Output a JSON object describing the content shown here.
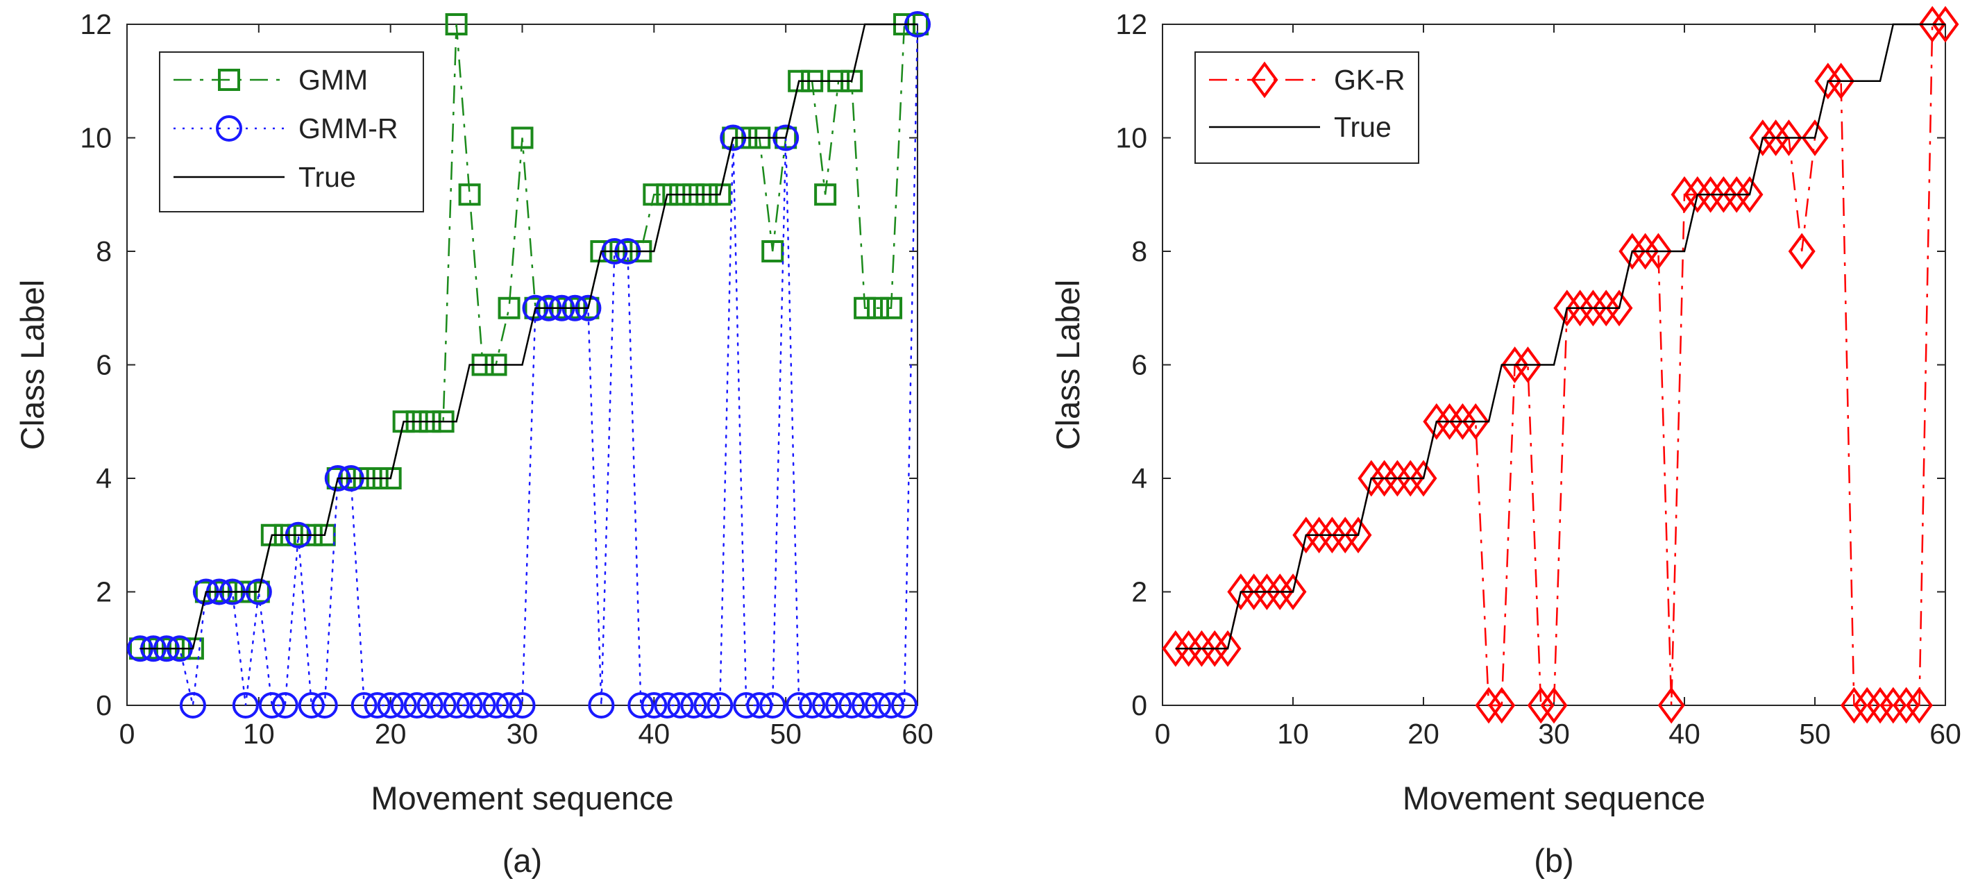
{
  "chart_data": [
    {
      "panel_label": "(a)",
      "type": "line",
      "xlabel": "Movement sequence",
      "ylabel": "Class Label",
      "xlim": [
        0,
        60
      ],
      "ylim": [
        0,
        12
      ],
      "xticks": [
        0,
        10,
        20,
        30,
        40,
        50,
        60
      ],
      "yticks": [
        0,
        2,
        4,
        6,
        8,
        10,
        12
      ],
      "legend_position": "top-left",
      "series": [
        {
          "name": "GMM",
          "color": "#1b8a1b",
          "line_style": "dash-dot",
          "marker": "square",
          "x": [
            1,
            2,
            3,
            4,
            5,
            6,
            7,
            8,
            9,
            10,
            11,
            12,
            13,
            14,
            15,
            16,
            17,
            18,
            19,
            20,
            21,
            22,
            23,
            24,
            25,
            26,
            27,
            28,
            29,
            30,
            31,
            32,
            33,
            34,
            35,
            36,
            37,
            38,
            39,
            40,
            41,
            42,
            43,
            44,
            45,
            46,
            47,
            48,
            49,
            50,
            51,
            52,
            53,
            54,
            55,
            56,
            57,
            58,
            59,
            60
          ],
          "y": [
            1,
            1,
            1,
            1,
            1,
            2,
            2,
            2,
            2,
            2,
            3,
            3,
            3,
            3,
            3,
            4,
            4,
            4,
            4,
            4,
            5,
            5,
            5,
            5,
            12,
            9,
            6,
            6,
            7,
            10,
            7,
            7,
            7,
            7,
            7,
            8,
            8,
            8,
            8,
            9,
            9,
            9,
            9,
            9,
            9,
            10,
            10,
            10,
            8,
            10,
            11,
            11,
            9,
            11,
            11,
            7,
            7,
            7,
            12,
            12
          ]
        },
        {
          "name": "GMM-R",
          "color": "#1a1aff",
          "line_style": "dotted",
          "marker": "circle",
          "x": [
            1,
            2,
            3,
            4,
            5,
            6,
            7,
            8,
            9,
            10,
            11,
            12,
            13,
            14,
            15,
            16,
            17,
            18,
            19,
            20,
            21,
            22,
            23,
            24,
            25,
            26,
            27,
            28,
            29,
            30,
            31,
            32,
            33,
            34,
            35,
            36,
            37,
            38,
            39,
            40,
            41,
            42,
            43,
            44,
            45,
            46,
            47,
            48,
            49,
            50,
            51,
            52,
            53,
            54,
            55,
            56,
            57,
            58,
            59,
            60
          ],
          "y": [
            1,
            1,
            1,
            1,
            0,
            2,
            2,
            2,
            0,
            2,
            0,
            0,
            3,
            0,
            0,
            4,
            4,
            0,
            0,
            0,
            0,
            0,
            0,
            0,
            0,
            0,
            0,
            0,
            0,
            0,
            7,
            7,
            7,
            7,
            7,
            0,
            8,
            8,
            0,
            0,
            0,
            0,
            0,
            0,
            0,
            10,
            0,
            0,
            0,
            10,
            0,
            0,
            0,
            0,
            0,
            0,
            0,
            0,
            0,
            12
          ]
        },
        {
          "name": "True",
          "color": "#000000",
          "line_style": "solid",
          "marker": "none",
          "x": [
            1,
            5,
            6,
            10,
            11,
            15,
            16,
            20,
            21,
            25,
            26,
            30,
            31,
            35,
            36,
            40,
            41,
            45,
            46,
            50,
            51,
            55,
            56,
            60
          ],
          "y": [
            1,
            1,
            2,
            2,
            3,
            3,
            4,
            4,
            5,
            5,
            6,
            6,
            7,
            7,
            8,
            8,
            9,
            9,
            10,
            10,
            11,
            11,
            12,
            12
          ]
        }
      ]
    },
    {
      "panel_label": "(b)",
      "type": "line",
      "xlabel": "Movement sequence",
      "ylabel": "Class Label",
      "xlim": [
        0,
        60
      ],
      "ylim": [
        0,
        12
      ],
      "xticks": [
        0,
        10,
        20,
        30,
        40,
        50,
        60
      ],
      "yticks": [
        0,
        2,
        4,
        6,
        8,
        10,
        12
      ],
      "legend_position": "top-left",
      "series": [
        {
          "name": "GK-R",
          "color": "#ff0000",
          "line_style": "dash-dot",
          "marker": "diamond",
          "x": [
            1,
            2,
            3,
            4,
            5,
            6,
            7,
            8,
            9,
            10,
            11,
            12,
            13,
            14,
            15,
            16,
            17,
            18,
            19,
            20,
            21,
            22,
            23,
            24,
            25,
            26,
            27,
            28,
            29,
            30,
            31,
            32,
            33,
            34,
            35,
            36,
            37,
            38,
            39,
            40,
            41,
            42,
            43,
            44,
            45,
            46,
            47,
            48,
            49,
            50,
            51,
            52,
            53,
            54,
            55,
            56,
            57,
            58,
            59,
            60
          ],
          "y": [
            1,
            1,
            1,
            1,
            1,
            2,
            2,
            2,
            2,
            2,
            3,
            3,
            3,
            3,
            3,
            4,
            4,
            4,
            4,
            4,
            5,
            5,
            5,
            5,
            0,
            0,
            6,
            6,
            0,
            0,
            7,
            7,
            7,
            7,
            7,
            8,
            8,
            8,
            0,
            9,
            9,
            9,
            9,
            9,
            9,
            10,
            10,
            10,
            8,
            10,
            11,
            11,
            0,
            0,
            0,
            0,
            0,
            0,
            12,
            12
          ]
        },
        {
          "name": "True",
          "color": "#000000",
          "line_style": "solid",
          "marker": "none",
          "x": [
            1,
            5,
            6,
            10,
            11,
            15,
            16,
            20,
            21,
            25,
            26,
            30,
            31,
            35,
            36,
            40,
            41,
            45,
            46,
            50,
            51,
            55,
            56,
            60
          ],
          "y": [
            1,
            1,
            2,
            2,
            3,
            3,
            4,
            4,
            5,
            5,
            6,
            6,
            7,
            7,
            8,
            8,
            9,
            9,
            10,
            10,
            11,
            11,
            12,
            12
          ]
        }
      ]
    }
  ]
}
